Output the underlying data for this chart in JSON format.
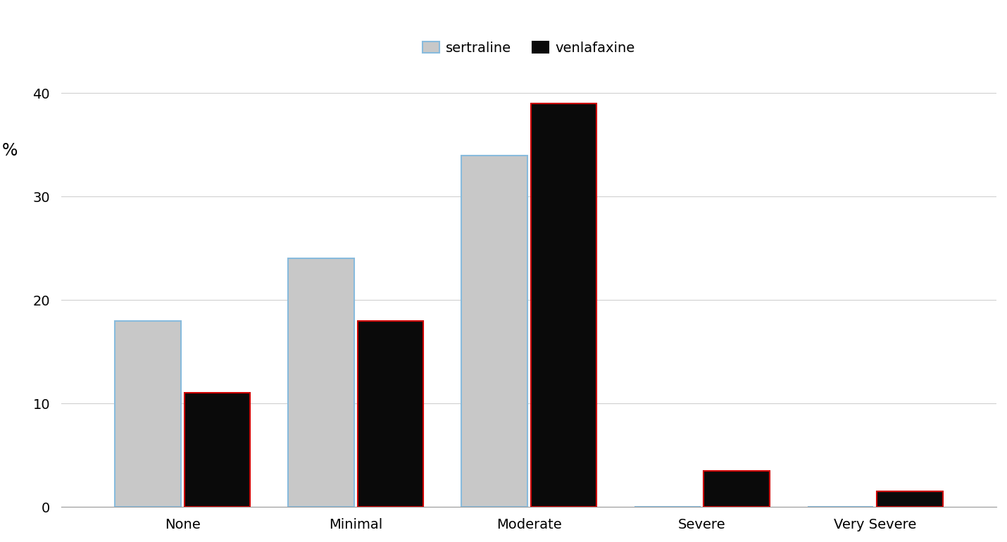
{
  "categories": [
    "None",
    "Minimal",
    "Moderate",
    "Severe",
    "Very Severe"
  ],
  "sertraline": [
    18,
    24,
    34,
    0,
    0
  ],
  "venlafaxine": [
    11,
    18,
    39,
    3.5,
    1.5
  ],
  "sertraline_color": "#c8c8c8",
  "sertraline_edge_color": "#88bbdd",
  "venlafaxine_color": "#0a0a0a",
  "venlafaxine_edge_color": "#cc0000",
  "ylabel": "%",
  "ylim": [
    0,
    42
  ],
  "yticks": [
    0,
    10,
    20,
    30,
    40
  ],
  "legend_labels": [
    "sertraline",
    "venlafaxine"
  ],
  "bar_width": 0.38,
  "bar_gap": 0.02,
  "axis_fontsize": 15,
  "tick_fontsize": 14,
  "legend_fontsize": 14,
  "background_color": "#ffffff",
  "grid_color": "#d0d0d0"
}
